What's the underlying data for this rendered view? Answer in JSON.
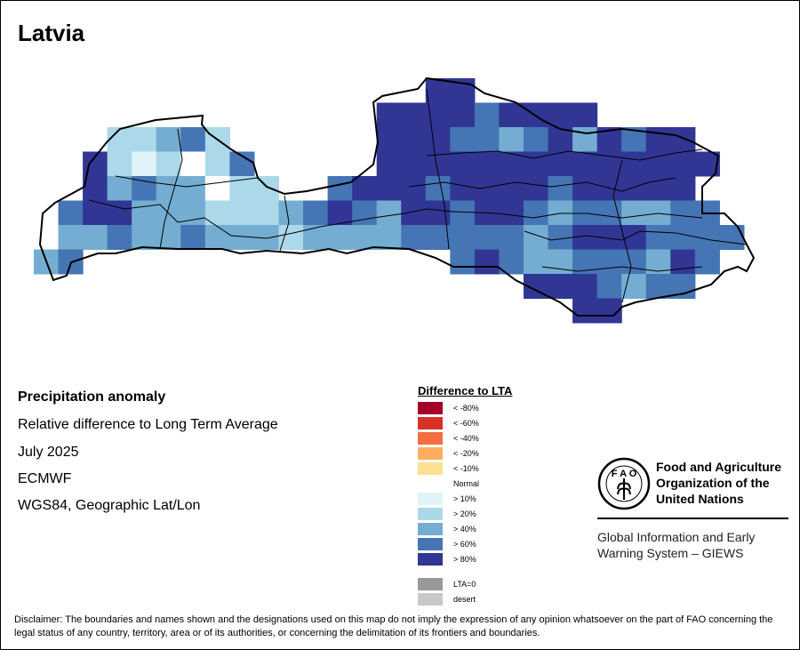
{
  "title": "Latvia",
  "info": {
    "heading": "Precipitation anomaly",
    "line1": "Relative difference to Long Term Average",
    "line2": "July 2025",
    "line3": "ECMWF",
    "line4": "WGS84, Geographic Lat/Lon"
  },
  "legend": {
    "title": "Difference to LTA",
    "items": [
      {
        "label": "< -80%",
        "color": "#a50026"
      },
      {
        "label": "< -60%",
        "color": "#d73027"
      },
      {
        "label": "< -40%",
        "color": "#f46d43"
      },
      {
        "label": "< -20%",
        "color": "#fdae61"
      },
      {
        "label": "< -10%",
        "color": "#fee090"
      },
      {
        "label": "Normal",
        "color": ""
      },
      {
        "label": "> 10%",
        "color": "#e0f3f8"
      },
      {
        "label": "> 20%",
        "color": "#abd9e9"
      },
      {
        "label": "> 40%",
        "color": "#74add1"
      },
      {
        "label": "> 60%",
        "color": "#4575b4"
      },
      {
        "label": "> 80%",
        "color": "#313695"
      }
    ],
    "extra": [
      {
        "label": "LTA=0",
        "color": "#999999"
      },
      {
        "label": "desert",
        "color": "#c8c8c8"
      }
    ]
  },
  "map_grid": {
    "legend": {
      "W": "#ffffff",
      "1": "#e0f3f8",
      "2": "#abd9e9",
      "3": "#74add1",
      "4": "#4575b4",
      "5": "#313695"
    },
    "rows": [
      "................55............",
      "..............555545555.......",
      "...22342......5554434535455...",
      "..5212W24.....55555555555555..",
      "..53433W22..455545555455555...",
      ".455333222345435545543443344..",
      ".3343343332333344444345554444.",
      "34...............45433444354..",
      "....................5554344...",
      "......................55......"
    ]
  },
  "org": {
    "name": "Food and Agriculture Organization of the United Nations",
    "logo_text": "FAO FIAT PANIS",
    "system": "Global Information and Early Warning System – GIEWS"
  },
  "disclaimer": "Disclaimer: The boundaries and names shown and the designations used on this map do not imply the expression of any opinion whatsoever on the part of FAO concerning the legal status of any country, territory, area or of its authorities, or concerning the delimitation of its frontiers and boundaries."
}
